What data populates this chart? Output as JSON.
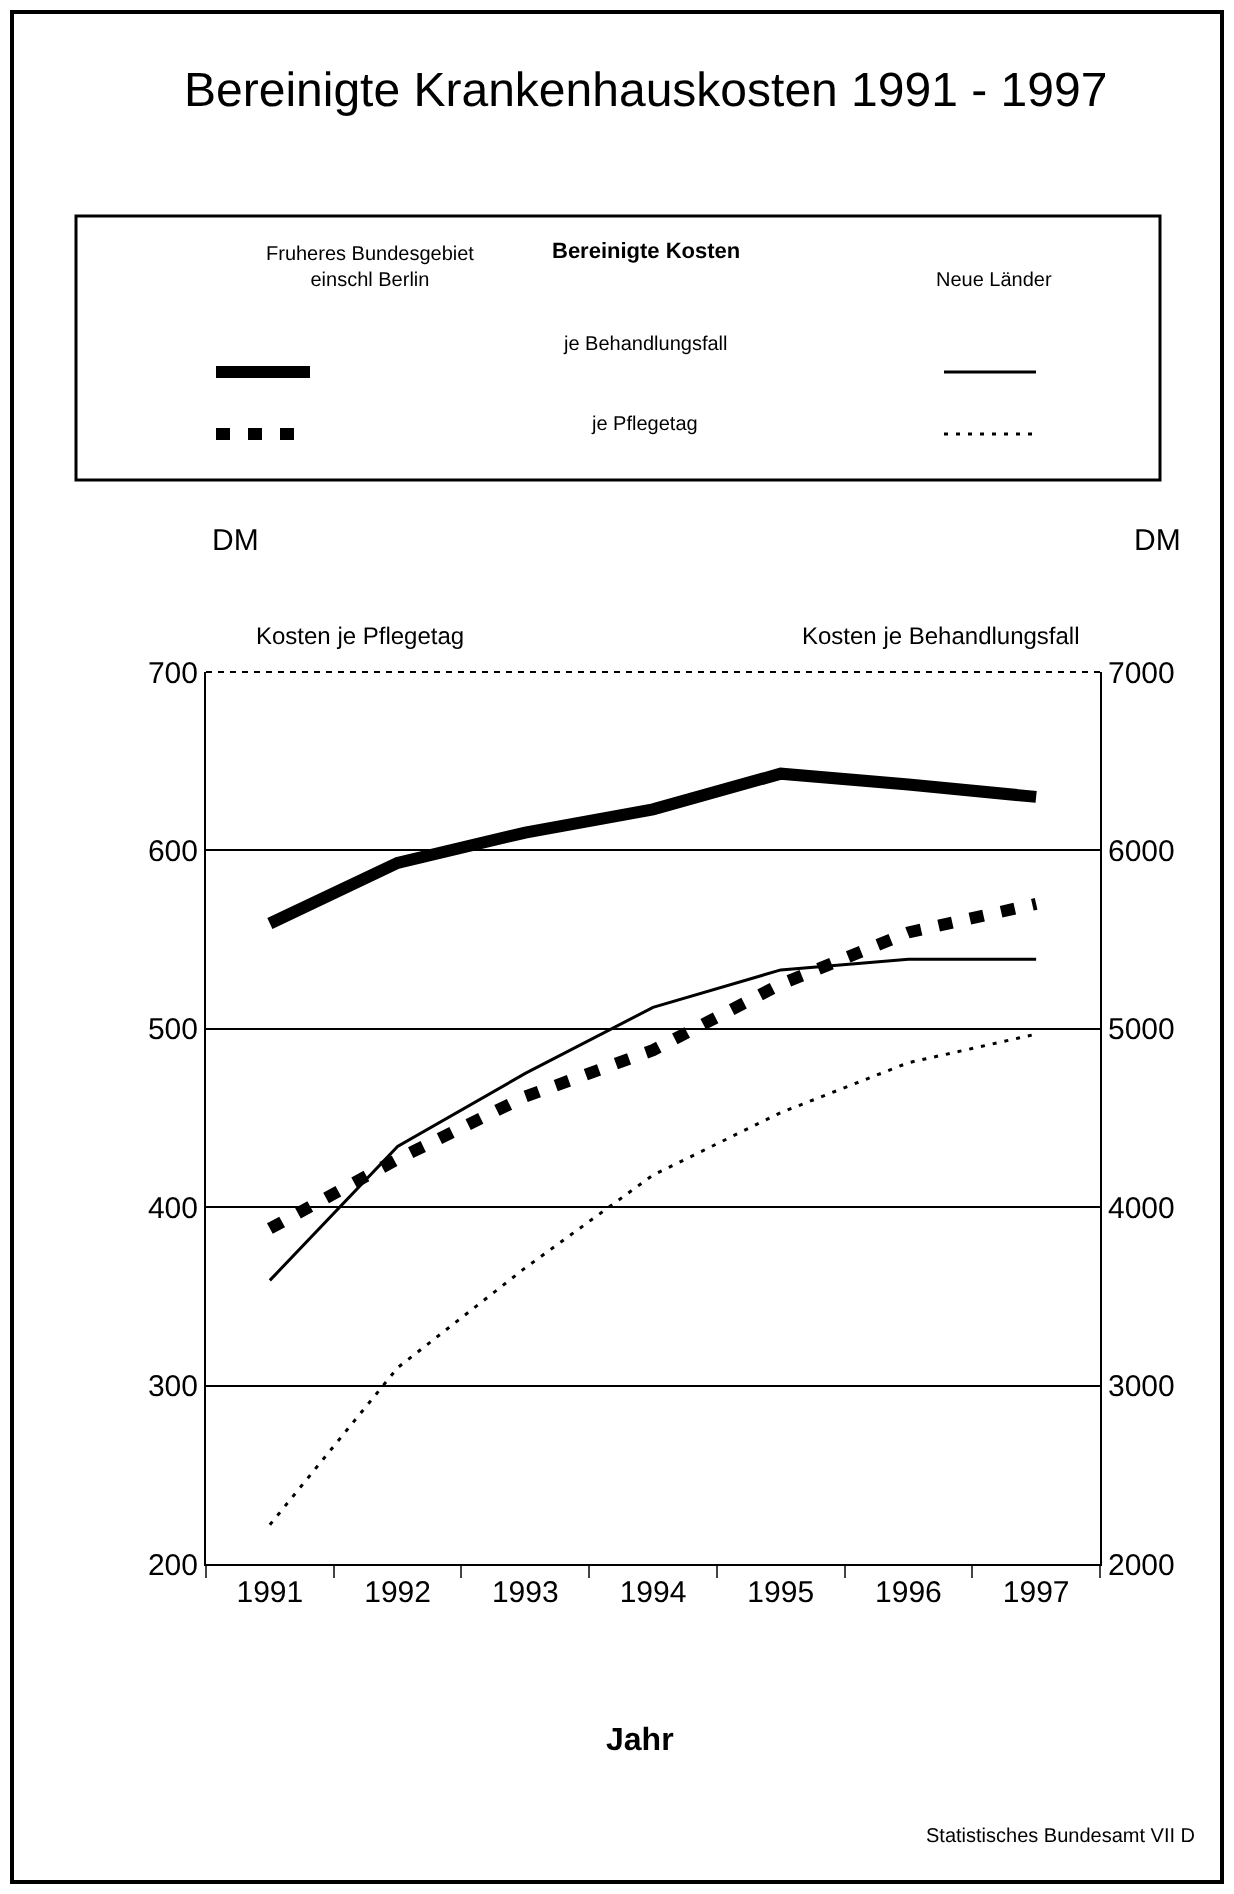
{
  "chart_data": {
    "type": "line",
    "title": "Bereinigte Krankenhauskosten 1991 - 1997",
    "legend_title": "Bereinigte Kosten",
    "xlabel": "Jahr",
    "ylabel": "DM",
    "y2label": "DM",
    "categories": [
      "1991",
      "1992",
      "1993",
      "1994",
      "1995",
      "1996",
      "1997"
    ],
    "series": [
      {
        "color": "#000000",
        "axis": "y2",
        "line_style": "solid",
        "values": [
          5590,
          5930,
          6100,
          6230,
          6430,
          6370,
          6300
        ]
      },
      {
        "color": "#000000",
        "line_style": "dotted",
        "values": [
          388,
          427,
          462,
          488,
          525,
          554,
          570
        ]
      },
      {
        "color": "#000000",
        "axis": "y2",
        "line_style": "solid",
        "values": [
          3590,
          4340,
          4750,
          5120,
          5330,
          5390,
          5390
        ]
      },
      {
        "color": "#000000",
        "line_style": "dotted",
        "values": [
          222,
          310,
          366,
          418,
          453,
          481,
          497
        ]
      }
    ],
    "ylim": [
      200,
      700
    ],
    "yticks": [
      200,
      300,
      400,
      500,
      600,
      700
    ],
    "y2lim": [
      2000,
      7000
    ],
    "y2ticks": [
      2000,
      3000,
      4000,
      5000,
      6000,
      7000
    ],
    "grid": "y",
    "marker": "none",
    "annotations": [
      "Fruheres Bundesgebiet einschl Berlin",
      "Neue Länder",
      "je Behandlungsfall",
      "je Pflegetag",
      "Kosten je Pflegetag",
      "Kosten je Behandlungsfall",
      "Statistisches Bundesamt VII D"
    ]
  }
}
